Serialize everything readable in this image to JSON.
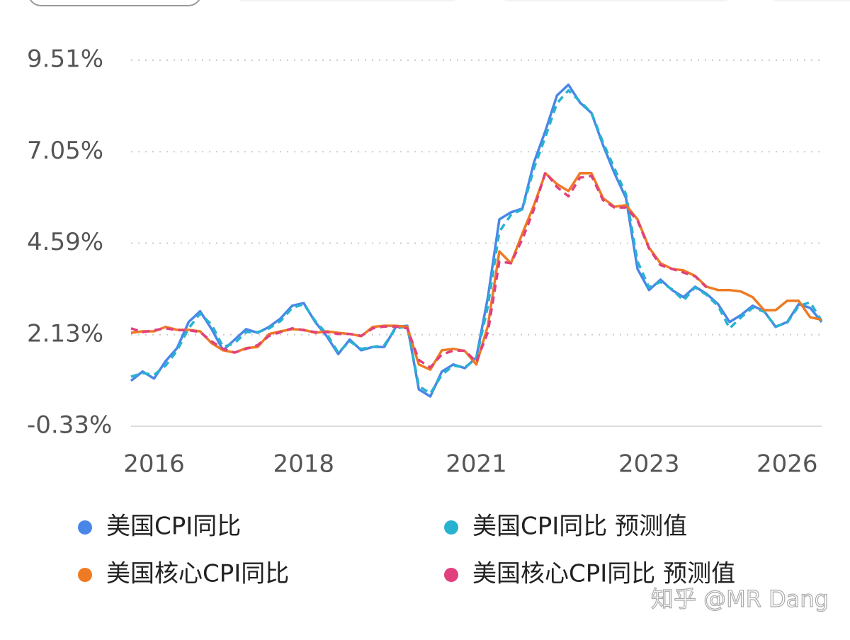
{
  "chart_data": {
    "type": "line",
    "categories": [
      null,
      null,
      "2016",
      null,
      null,
      null,
      null,
      null,
      null,
      null,
      null,
      null,
      null,
      null,
      null,
      "2018",
      null,
      null,
      null,
      null,
      null,
      null,
      null,
      null,
      null,
      null,
      null,
      null,
      null,
      null,
      "2021",
      null,
      null,
      null,
      null,
      null,
      null,
      null,
      null,
      null,
      null,
      null,
      null,
      null,
      null,
      "2023",
      null,
      null,
      null,
      null,
      null,
      null,
      null,
      null,
      null,
      null,
      null,
      "2026",
      null,
      null,
      null
    ],
    "series": [
      {
        "name": "美国CPI同比",
        "color": "#4a86e8",
        "dashed": false,
        "values": [
          0.89,
          1.14,
          0.95,
          1.42,
          1.77,
          2.47,
          2.76,
          2.28,
          1.71,
          2.0,
          2.28,
          2.18,
          2.34,
          2.57,
          2.91,
          2.98,
          2.47,
          2.09,
          1.61,
          2.0,
          1.71,
          1.8,
          1.8,
          2.34,
          2.37,
          0.66,
          0.47,
          1.14,
          1.33,
          1.23,
          1.52,
          3.14,
          5.23,
          5.42,
          5.52,
          6.76,
          7.61,
          8.56,
          8.85,
          8.37,
          8.09,
          7.23,
          6.47,
          5.8,
          3.9,
          3.33,
          3.61,
          3.33,
          3.14,
          3.42,
          3.23,
          2.95,
          2.47,
          2.66,
          2.91,
          2.76,
          2.34,
          2.47,
          2.95,
          2.85,
          2.47
        ]
      },
      {
        "name": "美国CPI同比 预测值",
        "color": "#27b3d0",
        "dashed": true,
        "values": [
          1.0,
          1.1,
          1.05,
          1.3,
          1.7,
          2.3,
          2.7,
          2.4,
          1.8,
          1.9,
          2.2,
          2.2,
          2.3,
          2.5,
          2.85,
          2.95,
          2.5,
          2.15,
          1.65,
          1.95,
          1.75,
          1.8,
          1.85,
          2.3,
          2.35,
          0.75,
          0.55,
          1.05,
          1.3,
          1.25,
          1.5,
          2.9,
          4.9,
          5.35,
          5.5,
          6.6,
          7.45,
          8.35,
          8.7,
          8.4,
          8.1,
          7.3,
          6.6,
          5.9,
          4.1,
          3.4,
          3.55,
          3.35,
          3.05,
          3.4,
          3.2,
          2.9,
          2.3,
          2.6,
          2.85,
          2.75,
          2.35,
          2.45,
          2.9,
          3.0,
          2.5
        ]
      },
      {
        "name": "美国核心CPI同比",
        "color": "#ee7a22",
        "dashed": false,
        "values": [
          2.18,
          2.22,
          2.22,
          2.34,
          2.26,
          2.26,
          2.22,
          1.9,
          1.71,
          1.65,
          1.77,
          1.8,
          2.15,
          2.22,
          2.28,
          2.26,
          2.18,
          2.22,
          2.18,
          2.15,
          2.09,
          2.34,
          2.37,
          2.37,
          2.34,
          1.33,
          1.19,
          1.71,
          1.75,
          1.69,
          1.33,
          2.37,
          4.37,
          4.05,
          4.85,
          5.61,
          6.47,
          6.18,
          5.99,
          6.47,
          6.47,
          5.8,
          5.57,
          5.61,
          5.23,
          4.47,
          4.05,
          3.9,
          3.86,
          3.71,
          3.42,
          3.33,
          3.33,
          3.29,
          3.14,
          2.79,
          2.79,
          3.04,
          3.04,
          2.6,
          2.53
        ]
      },
      {
        "name": "美国核心CPI同比 预测值",
        "color": "#e0407e",
        "dashed": true,
        "values": [
          2.3,
          2.2,
          2.25,
          2.3,
          2.25,
          2.25,
          2.2,
          1.95,
          1.75,
          1.65,
          1.75,
          1.85,
          2.1,
          2.2,
          2.3,
          2.25,
          2.2,
          2.2,
          2.15,
          2.15,
          2.1,
          2.3,
          2.35,
          2.35,
          2.3,
          1.45,
          1.25,
          1.6,
          1.7,
          1.7,
          1.4,
          2.2,
          4.1,
          4.05,
          4.7,
          5.5,
          6.5,
          6.1,
          5.85,
          6.35,
          6.4,
          5.75,
          5.55,
          5.55,
          5.2,
          4.45,
          4.0,
          3.9,
          3.8,
          3.7,
          3.4,
          null,
          null,
          null,
          null,
          null,
          null,
          null,
          null,
          null,
          null
        ]
      }
    ],
    "ylim": [
      -0.33,
      9.51
    ],
    "yticks": [
      {
        "value": -0.33,
        "label": "-0.33%"
      },
      {
        "value": 2.13,
        "label": "2.13%"
      },
      {
        "value": 4.59,
        "label": "4.59%"
      },
      {
        "value": 7.05,
        "label": "7.05%"
      },
      {
        "value": 9.51,
        "label": "9.51%"
      }
    ],
    "grid": true
  },
  "watermark": "知乎 @MR Dang"
}
